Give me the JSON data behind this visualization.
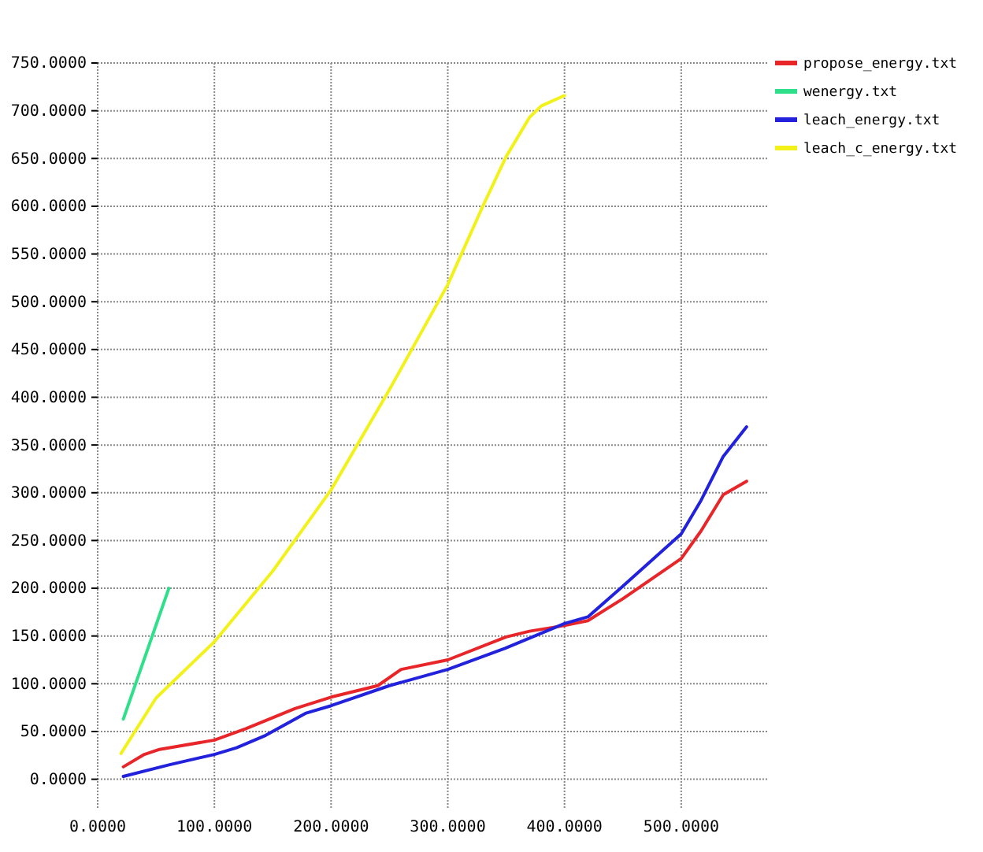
{
  "chart_data": {
    "type": "line",
    "xlim": [
      0,
      575
    ],
    "ylim": [
      -30,
      750
    ],
    "xticks": [
      {
        "value": 0,
        "label": "0.0000"
      },
      {
        "value": 100,
        "label": "100.0000"
      },
      {
        "value": 200,
        "label": "200.0000"
      },
      {
        "value": 300,
        "label": "300.0000"
      },
      {
        "value": 400,
        "label": "400.0000"
      },
      {
        "value": 500,
        "label": "500.0000"
      }
    ],
    "yticks": [
      {
        "value": 0,
        "label": "0.0000"
      },
      {
        "value": 50,
        "label": "50.0000"
      },
      {
        "value": 100,
        "label": "100.0000"
      },
      {
        "value": 150,
        "label": "150.0000"
      },
      {
        "value": 200,
        "label": "200.0000"
      },
      {
        "value": 250,
        "label": "250.0000"
      },
      {
        "value": 300,
        "label": "300.0000"
      },
      {
        "value": 350,
        "label": "350.0000"
      },
      {
        "value": 400,
        "label": "400.0000"
      },
      {
        "value": 450,
        "label": "450.0000"
      },
      {
        "value": 500,
        "label": "500.0000"
      },
      {
        "value": 550,
        "label": "550.0000"
      },
      {
        "value": 600,
        "label": "600.0000"
      },
      {
        "value": 650,
        "label": "650.0000"
      },
      {
        "value": 700,
        "label": "700.0000"
      },
      {
        "value": 750,
        "label": "750.0000"
      }
    ],
    "grid": true,
    "legend": "top right",
    "line_style": "solid",
    "marker": "none",
    "series": [
      {
        "name": "propose_energy.txt",
        "color": "#e8262a",
        "x": [
          22,
          40,
          52,
          100,
          127,
          169,
          200,
          240,
          260,
          300,
          350,
          370,
          400,
          420,
          450,
          500,
          517,
          536,
          556
        ],
        "values": [
          13,
          26,
          31,
          41,
          53,
          74,
          86,
          98,
          115,
          125,
          149,
          155,
          161,
          166,
          189,
          231,
          260,
          298,
          312
        ]
      },
      {
        "name": "wenergy.txt",
        "color": "#2ee08a",
        "x": [
          22,
          61
        ],
        "values": [
          63,
          200
        ]
      },
      {
        "name": "leach_energy.txt",
        "color": "#2222dd",
        "x": [
          22,
          61,
          100,
          119,
          144,
          178,
          200,
          250,
          300,
          349,
          400,
          420,
          449,
          500,
          517,
          536,
          556
        ],
        "values": [
          3,
          15,
          26,
          33,
          46,
          69,
          77,
          98,
          115,
          137,
          163,
          170,
          201,
          257,
          292,
          338,
          369
        ]
      },
      {
        "name": "leach_c_energy.txt",
        "color": "#f2f21a",
        "x": [
          20,
          50,
          100,
          150,
          200,
          250,
          300,
          330,
          350,
          370,
          380,
          400
        ],
        "values": [
          27,
          85,
          144,
          218,
          303,
          408,
          518,
          600,
          652,
          693,
          705,
          716
        ]
      }
    ]
  }
}
